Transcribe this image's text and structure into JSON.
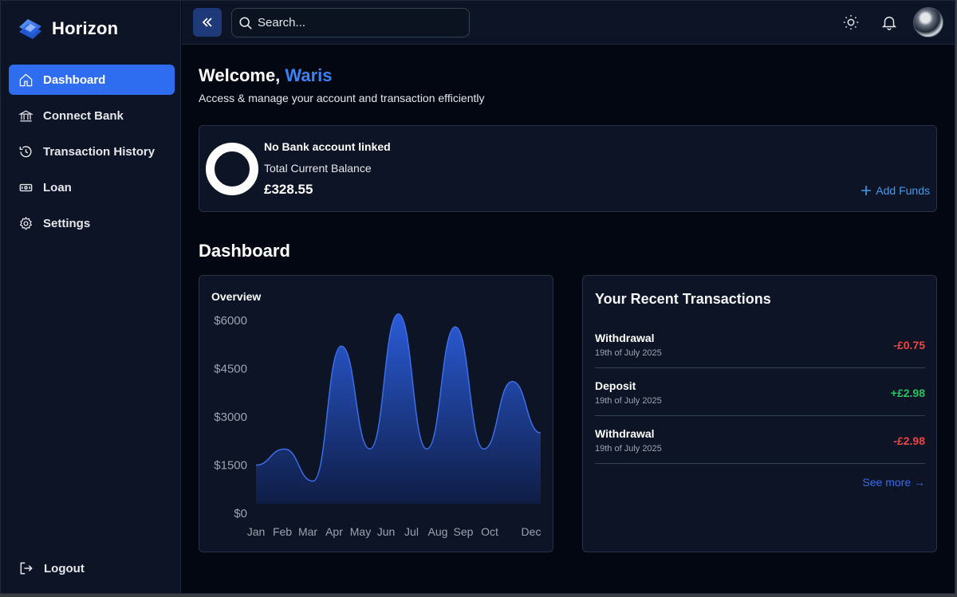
{
  "app": {
    "name": "Horizon"
  },
  "sidebar": {
    "items": [
      {
        "label": "Dashboard",
        "icon": "home-icon",
        "active": true
      },
      {
        "label": "Connect Bank",
        "icon": "bank-icon",
        "active": false
      },
      {
        "label": "Transaction History",
        "icon": "history-icon",
        "active": false
      },
      {
        "label": "Loan",
        "icon": "cash-icon",
        "active": false
      },
      {
        "label": "Settings",
        "icon": "gear-icon",
        "active": false
      }
    ],
    "logout_label": "Logout"
  },
  "topbar": {
    "search_placeholder": "Search..."
  },
  "welcome": {
    "greeting": "Welcome, ",
    "name": "Waris",
    "subtitle": "Access & manage your account and transaction efficiently"
  },
  "balance": {
    "status": "No Bank account linked",
    "label": "Total Current Balance",
    "value": "£328.55",
    "add_funds_label": "Add Funds"
  },
  "dashboard": {
    "title": "Dashboard"
  },
  "chart_data": {
    "type": "area",
    "title": "Overview",
    "categories": [
      "Jan",
      "Feb",
      "Mar",
      "Apr",
      "May",
      "Jun",
      "Jul",
      "Aug",
      "Sep",
      "Oct",
      "Dec"
    ],
    "values": [
      1500,
      2000,
      1000,
      5200,
      2000,
      6200,
      2000,
      5800,
      2000,
      4100,
      2500
    ],
    "ytick_labels": [
      "$6000",
      "$4500",
      "$3000",
      "$1500",
      "$0"
    ],
    "yticks": [
      6000,
      4500,
      3000,
      1500,
      0
    ],
    "ylim": [
      0,
      6000
    ],
    "grid": false,
    "colors": {
      "line": "#3b6ee8",
      "fill_top": "#2a5bd7",
      "fill_bottom": "#0f1d45"
    }
  },
  "transactions": {
    "title": "Your Recent Transactions",
    "items": [
      {
        "type": "Withdrawal",
        "date": "19th of July 2025",
        "amount": "-£0.75",
        "direction": "out"
      },
      {
        "type": "Deposit",
        "date": "19th of July 2025",
        "amount": "+£2.98",
        "direction": "in"
      },
      {
        "type": "Withdrawal",
        "date": "19th of July 2025",
        "amount": "-£2.98",
        "direction": "out"
      }
    ],
    "see_more_label": "See more →"
  }
}
